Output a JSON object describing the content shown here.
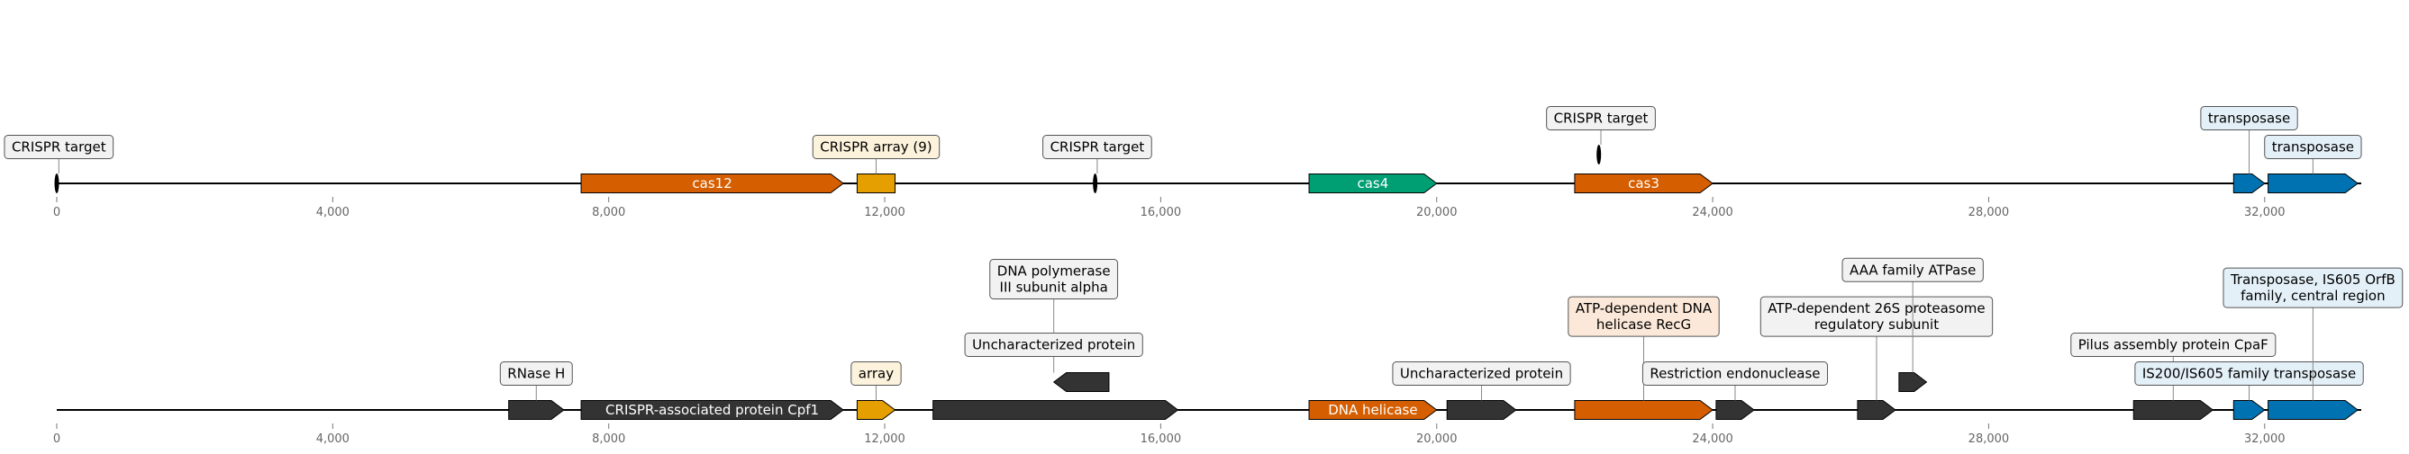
{
  "axis": {
    "min": 0,
    "max": 33400,
    "ticks": [
      0,
      4000,
      8000,
      12000,
      16000,
      20000,
      24000,
      28000,
      32000
    ],
    "tick_labels": [
      "0",
      "4,000",
      "8,000",
      "12,000",
      "16,000",
      "20,000",
      "24,000",
      "28,000",
      "32,000"
    ]
  },
  "tracks": [
    {
      "id": "top",
      "features": [
        {
          "name": "crispr-target-1",
          "type": "marker",
          "start": 0,
          "end": 60,
          "strand": 1,
          "color": "#000000",
          "callout": [
            "CRISPR target"
          ],
          "callout_fill": "#f2f2f2",
          "tier": 1
        },
        {
          "name": "cas12",
          "type": "gene",
          "start": 7600,
          "end": 11400,
          "strand": 1,
          "color": "#d55e00",
          "label": "cas12"
        },
        {
          "name": "crispr-array",
          "type": "gene",
          "start": 11600,
          "end": 12150,
          "strand": 0,
          "color": "#e69f00",
          "callout": [
            "CRISPR array (9)"
          ],
          "callout_fill": "#fdf3dc",
          "tier": 1
        },
        {
          "name": "crispr-target-2",
          "type": "marker",
          "start": 15050,
          "end": 15110,
          "strand": 1,
          "color": "#000000",
          "callout": [
            "CRISPR target"
          ],
          "callout_fill": "#f2f2f2",
          "tier": 1
        },
        {
          "name": "cas4",
          "type": "gene",
          "start": 18150,
          "end": 20000,
          "strand": 1,
          "color": "#009e73",
          "label": "cas4"
        },
        {
          "name": "crispr-target-3",
          "type": "marker",
          "start": 22350,
          "end": 22410,
          "strand": 1,
          "color": "#000000",
          "callout": [
            "CRISPR target"
          ],
          "callout_fill": "#f2f2f2",
          "tier": 2,
          "raised": true
        },
        {
          "name": "cas3",
          "type": "gene",
          "start": 22000,
          "end": 24000,
          "strand": 1,
          "color": "#d55e00",
          "label": "cas3"
        },
        {
          "name": "transposase-1",
          "type": "gene",
          "start": 31550,
          "end": 32000,
          "strand": 1,
          "color": "#0072b2",
          "callout": [
            "transposase"
          ],
          "callout_fill": "#e4f0f8",
          "tier": 2
        },
        {
          "name": "transposase-2",
          "type": "gene",
          "start": 32050,
          "end": 33350,
          "strand": 1,
          "color": "#0072b2",
          "callout": [
            "transposase"
          ],
          "callout_fill": "#e4f0f8",
          "tier": 1
        }
      ]
    },
    {
      "id": "bottom",
      "features": [
        {
          "name": "rnase-h",
          "type": "gene",
          "start": 6550,
          "end": 7350,
          "strand": 1,
          "color": "#333333",
          "callout": [
            "RNase H"
          ],
          "callout_fill": "#f2f2f2",
          "tier": 1
        },
        {
          "name": "crispr-associated-protein-cpf1",
          "type": "gene",
          "start": 7600,
          "end": 11400,
          "strand": 1,
          "color": "#333333",
          "label": "CRISPR-associated protein Cpf1"
        },
        {
          "name": "array",
          "type": "gene",
          "start": 11600,
          "end": 12150,
          "strand": 1,
          "color": "#e69f00",
          "callout": [
            "array"
          ],
          "callout_fill": "#fdf3dc",
          "tier": 1
        },
        {
          "name": "uncharacterized-protein-1",
          "type": "gene",
          "start": 12700,
          "end": 16250,
          "strand": 1,
          "color": "#333333"
        },
        {
          "name": "uncharacterized-protein-2",
          "type": "gene",
          "start": 14450,
          "end": 15250,
          "strand": -1,
          "color": "#333333",
          "offset": 1,
          "callout": [
            "Uncharacterized protein"
          ],
          "callout_fill": "#f2f2f2",
          "tier": 2,
          "anchor": 14450
        },
        {
          "name": "dna-polymerase-iii",
          "type": "none",
          "start": 14450,
          "end": 14450,
          "strand": 0,
          "color": "#333333",
          "callout": [
            "DNA polymerase",
            "III subunit alpha"
          ],
          "callout_fill": "#f2f2f2",
          "tier": 4,
          "anchor": 14450,
          "leader_to_tier": 2
        },
        {
          "name": "dna-helicase",
          "type": "gene",
          "start": 18150,
          "end": 20000,
          "strand": 1,
          "color": "#d55e00",
          "label": "DNA helicase"
        },
        {
          "name": "uncharacterized-protein-3",
          "type": "gene",
          "start": 20150,
          "end": 21150,
          "strand": 1,
          "color": "#333333",
          "callout": [
            "Uncharacterized protein"
          ],
          "callout_fill": "#f2f2f2",
          "tier": 1
        },
        {
          "name": "atp-dependent-dna-helicase-recg",
          "type": "gene",
          "start": 22000,
          "end": 24000,
          "strand": 1,
          "color": "#d55e00",
          "callout": [
            "ATP-dependent DNA",
            "helicase RecG"
          ],
          "callout_fill": "#fce8d8",
          "tier": 2.7
        },
        {
          "name": "restriction-endonuclease",
          "type": "gene",
          "start": 24050,
          "end": 24600,
          "strand": 1,
          "color": "#333333",
          "callout": [
            "Restriction endonuclease"
          ],
          "callout_fill": "#f2f2f2",
          "tier": 1
        },
        {
          "name": "atp-dependent-26s-proteasome",
          "type": "gene",
          "start": 26100,
          "end": 26650,
          "strand": 1,
          "color": "#333333",
          "callout": [
            "ATP-dependent 26S proteasome",
            "regulatory subunit"
          ],
          "callout_fill": "#f2f2f2",
          "tier": 2.7
        },
        {
          "name": "aaa-family-atpase",
          "type": "gene",
          "start": 26700,
          "end": 27100,
          "strand": 1,
          "color": "#333333",
          "offset": 1,
          "callout": [
            "AAA family ATPase"
          ],
          "callout_fill": "#f2f2f2",
          "tier": 4.6
        },
        {
          "name": "pilus-assembly-protein-cpaf",
          "type": "gene",
          "start": 30100,
          "end": 31250,
          "strand": 1,
          "color": "#333333",
          "callout": [
            "Pilus assembly protein CpaF"
          ],
          "callout_fill": "#f2f2f2",
          "tier": 2
        },
        {
          "name": "is200-is605-family-transposase",
          "type": "gene",
          "start": 31550,
          "end": 32000,
          "strand": 1,
          "color": "#0072b2",
          "callout": [
            "IS200/IS605 family transposase"
          ],
          "callout_fill": "#e4f0f8",
          "tier": 1
        },
        {
          "name": "transposase-is605-orfb",
          "type": "gene",
          "start": 32050,
          "end": 33350,
          "strand": 1,
          "color": "#0072b2",
          "callout": [
            "Transposase, IS605 OrfB",
            "family, central region"
          ],
          "callout_fill": "#e4f0f8",
          "tier": 3.7
        }
      ]
    }
  ]
}
